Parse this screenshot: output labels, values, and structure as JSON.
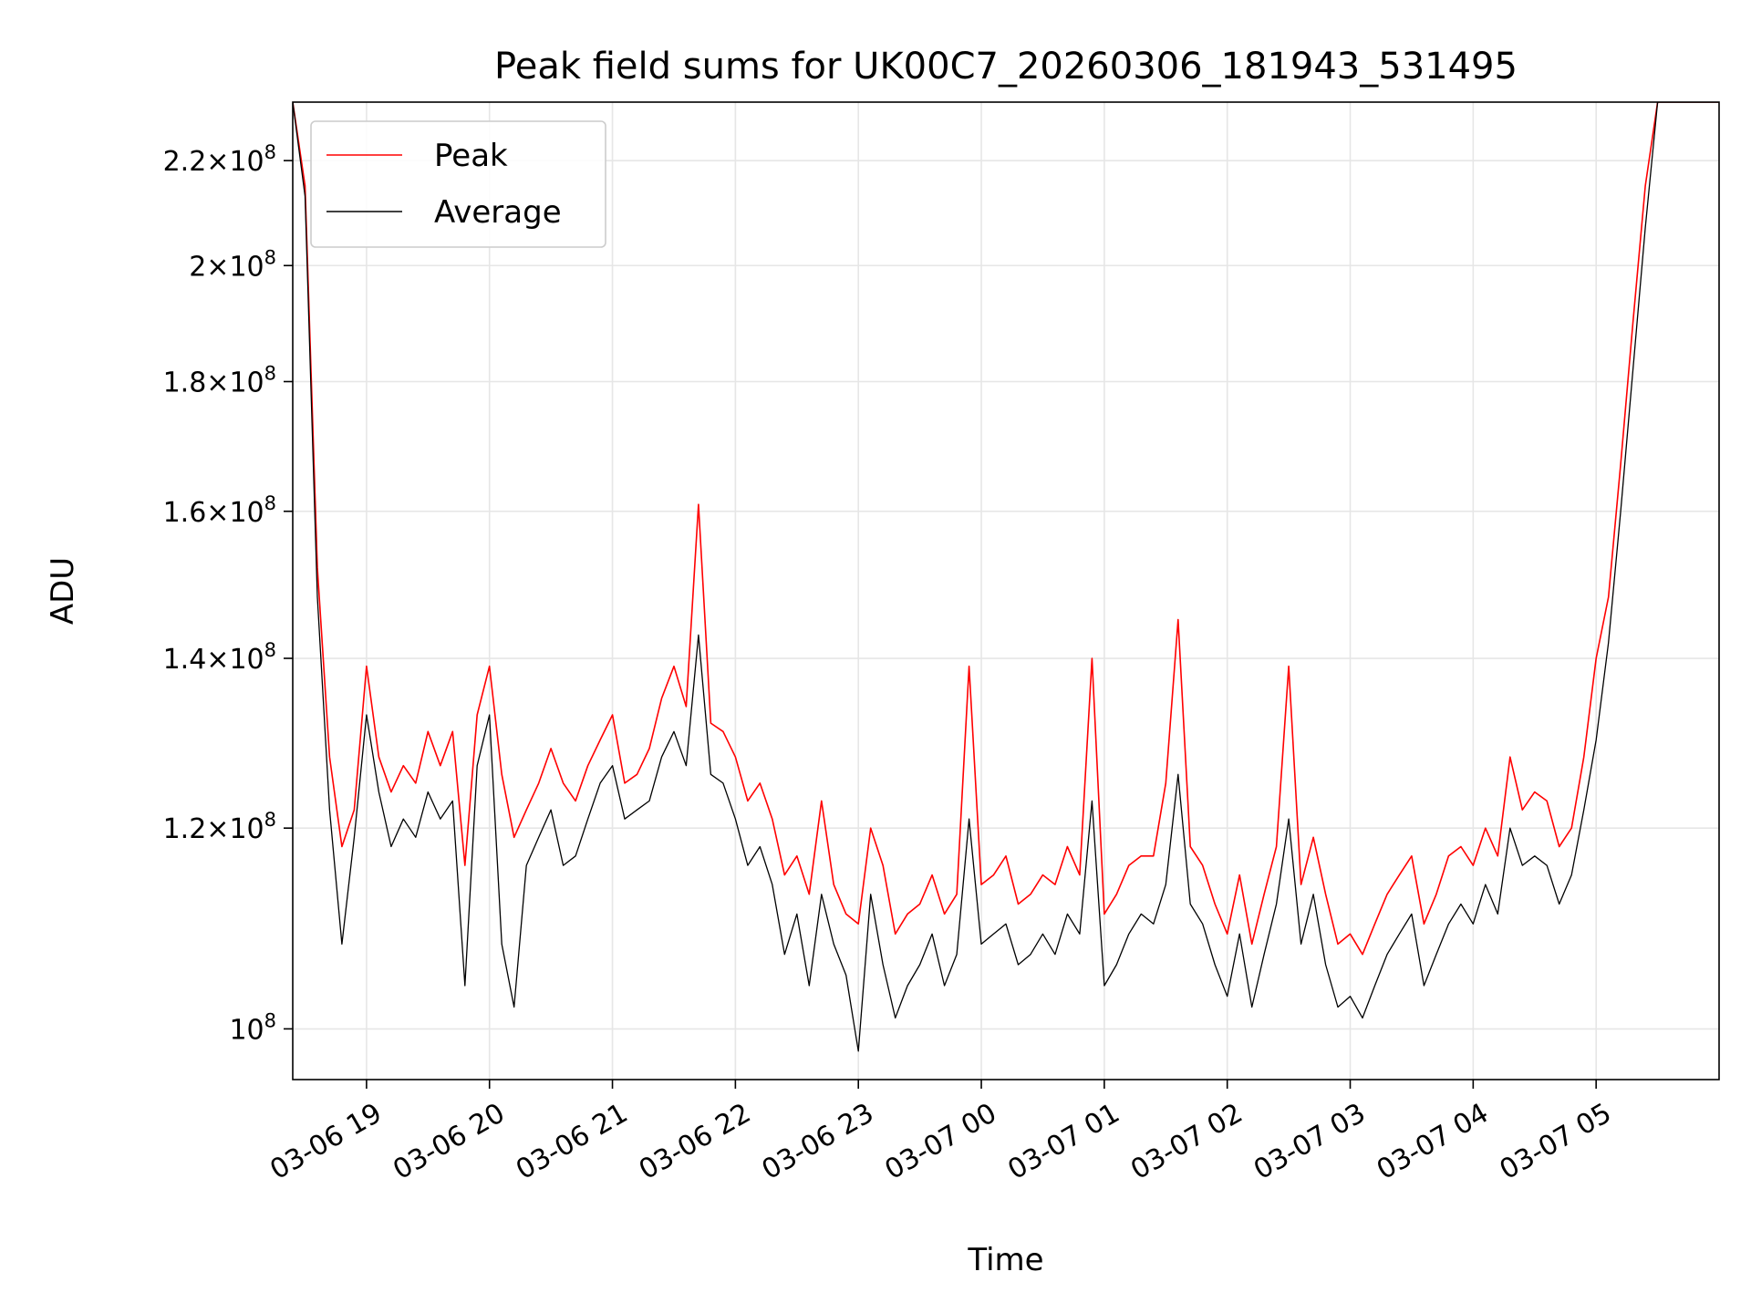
{
  "chart_data": {
    "type": "line",
    "title": "Peak field sums for UK00C7_20260306_181943_531495",
    "xlabel": "Time",
    "ylabel": "ADU",
    "yscale": "log",
    "ylim": [
      95500000,
      232000000
    ],
    "xlim_hours": [
      18.4,
      30.0
    ],
    "grid": true,
    "legend_location": "upper-left",
    "x_ticks": [
      {
        "hour": 19,
        "label": "03-06 19"
      },
      {
        "hour": 20,
        "label": "03-06 20"
      },
      {
        "hour": 21,
        "label": "03-06 21"
      },
      {
        "hour": 22,
        "label": "03-06 22"
      },
      {
        "hour": 23,
        "label": "03-06 23"
      },
      {
        "hour": 24,
        "label": "03-07 00"
      },
      {
        "hour": 25,
        "label": "03-07 01"
      },
      {
        "hour": 26,
        "label": "03-07 02"
      },
      {
        "hour": 27,
        "label": "03-07 03"
      },
      {
        "hour": 28,
        "label": "03-07 04"
      },
      {
        "hour": 29,
        "label": "03-07 05"
      }
    ],
    "y_ticks": [
      {
        "value": 100000000,
        "mantissa": "",
        "exp": "8"
      },
      {
        "value": 120000000,
        "mantissa": "1.2",
        "exp": "8"
      },
      {
        "value": 140000000,
        "mantissa": "1.4",
        "exp": "8"
      },
      {
        "value": 160000000,
        "mantissa": "1.6",
        "exp": "8"
      },
      {
        "value": 180000000,
        "mantissa": "1.8",
        "exp": "8"
      },
      {
        "value": 200000000,
        "mantissa": "2",
        "exp": "8"
      },
      {
        "value": 220000000,
        "mantissa": "2.2",
        "exp": "8"
      }
    ],
    "series": [
      {
        "name": "Peak",
        "color": "#ff0000",
        "x_hours": [
          18.4,
          18.5,
          18.6,
          18.7,
          18.8,
          18.9,
          19.0,
          19.1,
          19.2,
          19.3,
          19.4,
          19.5,
          19.6,
          19.7,
          19.8,
          19.9,
          20.0,
          20.1,
          20.2,
          20.3,
          20.4,
          20.5,
          20.6,
          20.7,
          20.8,
          20.9,
          21.0,
          21.1,
          21.2,
          21.3,
          21.4,
          21.5,
          21.6,
          21.7,
          21.8,
          21.9,
          22.0,
          22.1,
          22.2,
          22.3,
          22.4,
          22.5,
          22.6,
          22.7,
          22.8,
          22.9,
          23.0,
          23.1,
          23.2,
          23.3,
          23.4,
          23.5,
          23.6,
          23.7,
          23.8,
          23.9,
          24.0,
          24.1,
          24.2,
          24.3,
          24.4,
          24.5,
          24.6,
          24.7,
          24.8,
          24.9,
          25.0,
          25.1,
          25.2,
          25.3,
          25.4,
          25.5,
          25.6,
          25.7,
          25.8,
          25.9,
          26.0,
          26.1,
          26.2,
          26.3,
          26.4,
          26.5,
          26.6,
          26.7,
          26.8,
          26.9,
          27.0,
          27.1,
          27.2,
          27.3,
          27.4,
          27.5,
          27.6,
          27.7,
          27.8,
          27.9,
          28.0,
          28.1,
          28.2,
          28.3,
          28.4,
          28.5,
          28.6,
          28.7,
          28.8,
          28.9,
          29.0,
          29.1,
          29.2,
          29.3,
          29.4,
          29.5,
          29.6,
          29.7,
          29.8,
          29.9,
          30.0
        ],
        "values": [
          232000000,
          215000000,
          152000000,
          128000000,
          118000000,
          122000000,
          139000000,
          128000000,
          124000000,
          127000000,
          125000000,
          131000000,
          127000000,
          131000000,
          116000000,
          133000000,
          139000000,
          126000000,
          119000000,
          122000000,
          125000000,
          129000000,
          125000000,
          123000000,
          127000000,
          130000000,
          133000000,
          125000000,
          126000000,
          129000000,
          135000000,
          139000000,
          134000000,
          161000000,
          132000000,
          131000000,
          128000000,
          123000000,
          125000000,
          121000000,
          115000000,
          117000000,
          113000000,
          123000000,
          114000000,
          111000000,
          110000000,
          120000000,
          116000000,
          109000000,
          111000000,
          112000000,
          115000000,
          111000000,
          113000000,
          139000000,
          114000000,
          115000000,
          117000000,
          112000000,
          113000000,
          115000000,
          114000000,
          118000000,
          115000000,
          140000000,
          111000000,
          113000000,
          116000000,
          117000000,
          117000000,
          125000000,
          145000000,
          118000000,
          116000000,
          112000000,
          109000000,
          115000000,
          108000000,
          113000000,
          118000000,
          139000000,
          114000000,
          119000000,
          113000000,
          108000000,
          109000000,
          107000000,
          110000000,
          113000000,
          115000000,
          117000000,
          110000000,
          113000000,
          117000000,
          118000000,
          116000000,
          120000000,
          117000000,
          128000000,
          122000000,
          124000000,
          123000000,
          118000000,
          120000000,
          128000000,
          140000000,
          148000000,
          167000000,
          190000000,
          215000000,
          232000000,
          232000000,
          232000000,
          232000000,
          232000000,
          232000000
        ]
      },
      {
        "name": "Average",
        "color": "#000000",
        "x_hours": [
          18.4,
          18.5,
          18.6,
          18.7,
          18.8,
          18.9,
          19.0,
          19.1,
          19.2,
          19.3,
          19.4,
          19.5,
          19.6,
          19.7,
          19.8,
          19.9,
          20.0,
          20.1,
          20.2,
          20.3,
          20.4,
          20.5,
          20.6,
          20.7,
          20.8,
          20.9,
          21.0,
          21.1,
          21.2,
          21.3,
          21.4,
          21.5,
          21.6,
          21.7,
          21.8,
          21.9,
          22.0,
          22.1,
          22.2,
          22.3,
          22.4,
          22.5,
          22.6,
          22.7,
          22.8,
          22.9,
          23.0,
          23.1,
          23.2,
          23.3,
          23.4,
          23.5,
          23.6,
          23.7,
          23.8,
          23.9,
          24.0,
          24.1,
          24.2,
          24.3,
          24.4,
          24.5,
          24.6,
          24.7,
          24.8,
          24.9,
          25.0,
          25.1,
          25.2,
          25.3,
          25.4,
          25.5,
          25.6,
          25.7,
          25.8,
          25.9,
          26.0,
          26.1,
          26.2,
          26.3,
          26.4,
          26.5,
          26.6,
          26.7,
          26.8,
          26.9,
          27.0,
          27.1,
          27.2,
          27.3,
          27.4,
          27.5,
          27.6,
          27.7,
          27.8,
          27.9,
          28.0,
          28.1,
          28.2,
          28.3,
          28.4,
          28.5,
          28.6,
          28.7,
          28.8,
          28.9,
          29.0,
          29.1,
          29.2,
          29.3,
          29.4,
          29.5,
          29.6,
          29.7,
          29.8,
          29.9,
          30.0
        ],
        "values": [
          232000000,
          213000000,
          148000000,
          122000000,
          108000000,
          119000000,
          133000000,
          124000000,
          118000000,
          121000000,
          119000000,
          124000000,
          121000000,
          123000000,
          104000000,
          127000000,
          133000000,
          108000000,
          102000000,
          116000000,
          119000000,
          122000000,
          116000000,
          117000000,
          121000000,
          125000000,
          127000000,
          121000000,
          122000000,
          123000000,
          128000000,
          131000000,
          127000000,
          143000000,
          126000000,
          125000000,
          121000000,
          116000000,
          118000000,
          114000000,
          107000000,
          111000000,
          104000000,
          113000000,
          108000000,
          105000000,
          98000000,
          113000000,
          106000000,
          101000000,
          104000000,
          106000000,
          109000000,
          104000000,
          107000000,
          121000000,
          108000000,
          109000000,
          110000000,
          106000000,
          107000000,
          109000000,
          107000000,
          111000000,
          109000000,
          123000000,
          104000000,
          106000000,
          109000000,
          111000000,
          110000000,
          114000000,
          126000000,
          112000000,
          110000000,
          106000000,
          103000000,
          109000000,
          102000000,
          107000000,
          112000000,
          121000000,
          108000000,
          113000000,
          106000000,
          102000000,
          103000000,
          101000000,
          104000000,
          107000000,
          109000000,
          111000000,
          104000000,
          107000000,
          110000000,
          112000000,
          110000000,
          114000000,
          111000000,
          120000000,
          116000000,
          117000000,
          116000000,
          112000000,
          115000000,
          122000000,
          130000000,
          142000000,
          160000000,
          182000000,
          207000000,
          232000000,
          232000000,
          232000000,
          232000000,
          232000000,
          232000000
        ]
      }
    ]
  }
}
